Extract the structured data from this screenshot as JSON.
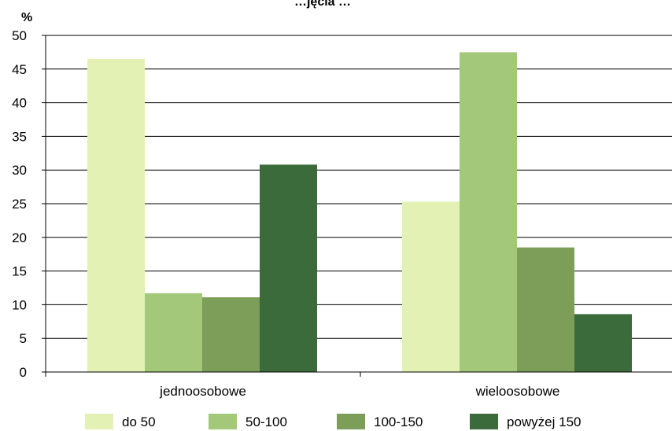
{
  "chart_data": {
    "type": "bar",
    "title": "",
    "title_fragment": "…jęcia …",
    "ylabel": "%",
    "xlabel": "",
    "ylim": [
      0,
      50
    ],
    "yticks": [
      0,
      5,
      10,
      15,
      20,
      25,
      30,
      35,
      40,
      45,
      50
    ],
    "categories": [
      "jednoosobowe",
      "wieloosobowe"
    ],
    "series": [
      {
        "name": "do 50",
        "color": "#e3f2b4",
        "values": [
          46.5,
          25.3
        ]
      },
      {
        "name": "50-100",
        "color": "#a3c879",
        "values": [
          11.7,
          47.5
        ]
      },
      {
        "name": "100-150",
        "color": "#7c9e59",
        "values": [
          11.1,
          18.5
        ]
      },
      {
        "name": "powyżej 150",
        "color": "#3b6b3a",
        "values": [
          30.8,
          8.6
        ]
      }
    ],
    "grid": true,
    "legend_position": "bottom"
  }
}
